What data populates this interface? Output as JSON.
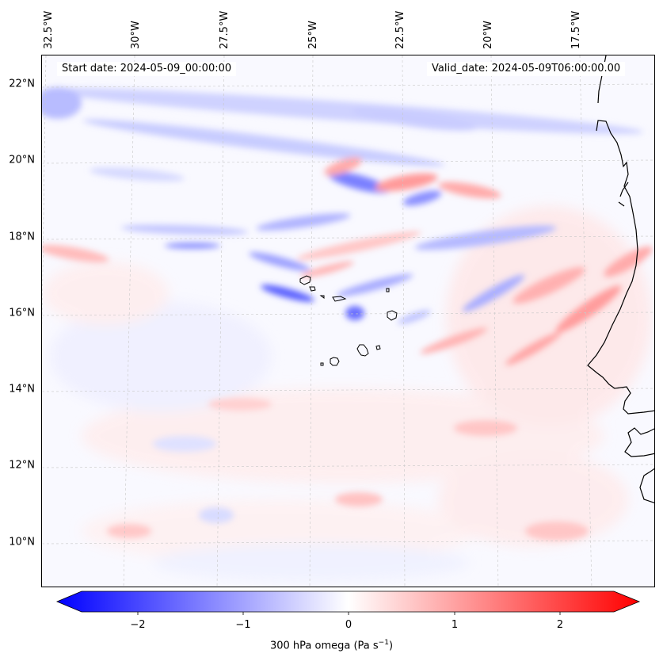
{
  "header": {
    "start_date": "Start date: 2024-05-09_00:00:00",
    "valid_date": "Valid_date: 2024-05-09T06:00:00.00"
  },
  "map": {
    "longitude_labels": [
      "32.5°W",
      "30°W",
      "27.5°W",
      "25°W",
      "22.5°W",
      "20°W",
      "17.5°W"
    ],
    "latitude_labels": [
      "22°N",
      "20°N",
      "18°N",
      "16°N",
      "14°N",
      "12°N",
      "10°N"
    ],
    "variable": "300 hPa omega"
  },
  "colorbar": {
    "ticks": [
      "−2",
      "−1",
      "0",
      "1",
      "2"
    ],
    "label": "300 hPa omega (Pa s",
    "label_exponent": "−1",
    "label_close": ")",
    "range": [
      -2.7,
      2.7
    ],
    "colors": {
      "negative": "#0000ff",
      "zero": "#ffffff",
      "positive": "#ff0000"
    }
  }
}
